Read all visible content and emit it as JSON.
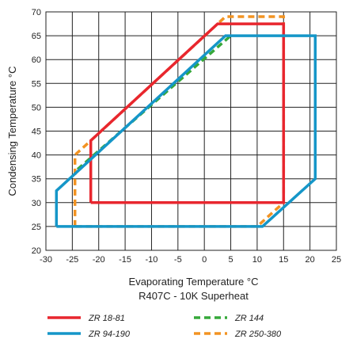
{
  "chart_data": {
    "type": "line",
    "xlabel": "Evaporating Temperature °C",
    "subtitle": "R407C - 10K Superheat",
    "ylabel": "Condensing Temperature °C",
    "xlim": [
      -30,
      25
    ],
    "ylim": [
      20,
      70
    ],
    "xticks": [
      -30,
      -25,
      -20,
      -15,
      -10,
      -5,
      0,
      5,
      10,
      15,
      20,
      25
    ],
    "yticks": [
      20,
      25,
      30,
      35,
      40,
      45,
      50,
      55,
      60,
      65,
      70
    ],
    "grid": true,
    "legend_position": "bottom",
    "series": [
      {
        "name": "ZR 18-81",
        "color": "#e8262e",
        "style": "solid",
        "points": [
          [
            -21.5,
            30
          ],
          [
            15,
            30
          ],
          [
            15,
            67.5
          ],
          [
            2.5,
            67.5
          ],
          [
            -21.5,
            43
          ],
          [
            -21.5,
            30
          ]
        ]
      },
      {
        "name": "ZR 144",
        "color": "#36a83a",
        "style": "dashed",
        "points": [
          [
            -24,
            37
          ],
          [
            5,
            65
          ]
        ]
      },
      {
        "name": "ZR 94-190",
        "color": "#1596c8",
        "style": "solid",
        "points": [
          [
            -28,
            25
          ],
          [
            11,
            25
          ],
          [
            21,
            35
          ],
          [
            21,
            65
          ],
          [
            4,
            65
          ],
          [
            -28,
            32.5
          ],
          [
            -28,
            25
          ]
        ]
      },
      {
        "name": "ZR 250-380",
        "color": "#f29322",
        "style": "dashed",
        "points": [
          [
            -24.5,
            25
          ],
          [
            -24.5,
            40
          ],
          [
            -22,
            42.5
          ],
          [
            4,
            69
          ],
          [
            15,
            69
          ],
          [
            15,
            30
          ],
          [
            10,
            25
          ],
          [
            -24.5,
            25
          ]
        ]
      }
    ]
  }
}
